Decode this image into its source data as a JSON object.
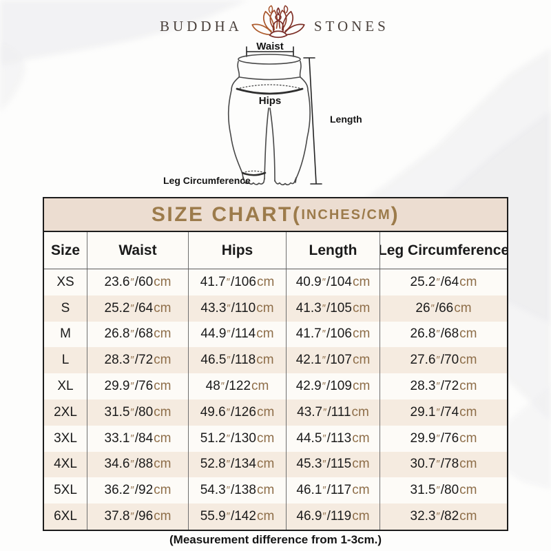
{
  "brand": {
    "left": "BUDDHA",
    "right": "STONES",
    "logo": "lotus-meditation-icon"
  },
  "diagram": {
    "labels": {
      "waist": "Waist",
      "hips": "Hips",
      "length": "Length",
      "leg_circumference": "Leg Circumference"
    }
  },
  "size_chart": {
    "title": {
      "main": "SIZE CHART",
      "paren_open": "(",
      "units": "INCHES/CM",
      "paren_close": ")"
    },
    "columns": [
      "Size",
      "Waist",
      "Hips",
      "Length",
      "Leg Circumference"
    ],
    "unit_inch_mark": "″",
    "unit_cm": "cm",
    "rows": [
      {
        "size": "XS",
        "measurements": [
          {
            "in": "23.6",
            "cm": "60"
          },
          {
            "in": "41.7",
            "cm": "106"
          },
          {
            "in": "40.9",
            "cm": "104"
          },
          {
            "in": "25.2",
            "cm": "64"
          }
        ]
      },
      {
        "size": "S",
        "measurements": [
          {
            "in": "25.2",
            "cm": "64"
          },
          {
            "in": "43.3",
            "cm": "110"
          },
          {
            "in": "41.3",
            "cm": "105"
          },
          {
            "in": "26",
            "cm": "66"
          }
        ]
      },
      {
        "size": "M",
        "measurements": [
          {
            "in": "26.8",
            "cm": "68"
          },
          {
            "in": "44.9",
            "cm": "114"
          },
          {
            "in": "41.7",
            "cm": "106"
          },
          {
            "in": "26.8",
            "cm": "68"
          }
        ]
      },
      {
        "size": "L",
        "measurements": [
          {
            "in": "28.3",
            "cm": "72"
          },
          {
            "in": "46.5",
            "cm": "118"
          },
          {
            "in": "42.1",
            "cm": "107"
          },
          {
            "in": "27.6",
            "cm": "70"
          }
        ]
      },
      {
        "size": "XL",
        "measurements": [
          {
            "in": "29.9",
            "cm": "76"
          },
          {
            "in": "48",
            "cm": "122"
          },
          {
            "in": "42.9",
            "cm": "109"
          },
          {
            "in": "28.3",
            "cm": "72"
          }
        ]
      },
      {
        "size": "2XL",
        "measurements": [
          {
            "in": "31.5",
            "cm": "80"
          },
          {
            "in": "49.6",
            "cm": "126"
          },
          {
            "in": "43.7",
            "cm": "111"
          },
          {
            "in": "29.1",
            "cm": "74"
          }
        ]
      },
      {
        "size": "3XL",
        "measurements": [
          {
            "in": "33.1",
            "cm": "84"
          },
          {
            "in": "51.2",
            "cm": "130"
          },
          {
            "in": "44.5",
            "cm": "113"
          },
          {
            "in": "29.9",
            "cm": "76"
          }
        ]
      },
      {
        "size": "4XL",
        "measurements": [
          {
            "in": "34.6",
            "cm": "88"
          },
          {
            "in": "52.8",
            "cm": "134"
          },
          {
            "in": "45.3",
            "cm": "115"
          },
          {
            "in": "30.7",
            "cm": "78"
          }
        ]
      },
      {
        "size": "5XL",
        "measurements": [
          {
            "in": "36.2",
            "cm": "92"
          },
          {
            "in": "54.3",
            "cm": "138"
          },
          {
            "in": "46.1",
            "cm": "117"
          },
          {
            "in": "31.5",
            "cm": "80"
          }
        ]
      },
      {
        "size": "6XL",
        "measurements": [
          {
            "in": "37.8",
            "cm": "96"
          },
          {
            "in": "55.9",
            "cm": "142"
          },
          {
            "in": "46.9",
            "cm": "119"
          },
          {
            "in": "32.3",
            "cm": "82"
          }
        ]
      }
    ]
  },
  "footnote": "(Measurement difference from 1-3cm.)",
  "colors": {
    "title_bg": "#ecddd1",
    "title_text": "#9c7b4b",
    "table_border": "#1c1c1c",
    "row_base": "#fdfbf7",
    "row_alt": "#f5ebe0",
    "unit": "#8e6e49",
    "logo_text": "#4a413c",
    "lotus_warm": "#a8552b",
    "lotus_deep": "#7c2f26"
  },
  "chart_data": {
    "type": "table",
    "title": "SIZE CHART(INCHES/CM)",
    "columns": [
      "Size",
      "Waist",
      "Hips",
      "Length",
      "Leg Circumference"
    ],
    "rows": [
      [
        "XS",
        "23.6\"/60cm",
        "41.7\"/106cm",
        "40.9\"/104cm",
        "25.2\"/64cm"
      ],
      [
        "S",
        "25.2\"/64cm",
        "43.3\"/110cm",
        "41.3\"/105cm",
        "26\"/66cm"
      ],
      [
        "M",
        "26.8\"/68cm",
        "44.9\"/114cm",
        "41.7\"/106cm",
        "26.8\"/68cm"
      ],
      [
        "L",
        "28.3\"/72cm",
        "46.5\"/118cm",
        "42.1\"/107cm",
        "27.6\"/70cm"
      ],
      [
        "XL",
        "29.9\"/76cm",
        "48\"/122cm",
        "42.9\"/109cm",
        "28.3\"/72cm"
      ],
      [
        "2XL",
        "31.5\"/80cm",
        "49.6\"/126cm",
        "43.7\"/111cm",
        "29.1\"/74cm"
      ],
      [
        "3XL",
        "33.1\"/84cm",
        "51.2\"/130cm",
        "44.5\"/113cm",
        "29.9\"/76cm"
      ],
      [
        "4XL",
        "34.6\"/88cm",
        "52.8\"/134cm",
        "45.3\"/115cm",
        "30.7\"/78cm"
      ],
      [
        "5XL",
        "36.2\"/92cm",
        "54.3\"/138cm",
        "46.1\"/117cm",
        "31.5\"/80cm"
      ],
      [
        "6XL",
        "37.8\"/96cm",
        "55.9\"/142cm",
        "46.9\"/119cm",
        "32.3\"/82cm"
      ]
    ],
    "footnote": "(Measurement difference from 1-3cm.)"
  }
}
